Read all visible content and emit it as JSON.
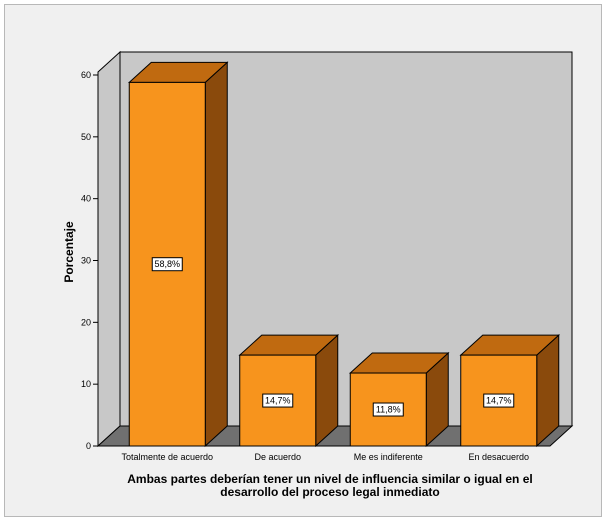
{
  "chart_data": {
    "type": "bar",
    "style": "3d",
    "categories": [
      "Totalmente de acuerdo",
      "De acuerdo",
      "Me es indiferente",
      "En desacuerdo"
    ],
    "values": [
      58.8,
      14.7,
      11.8,
      14.7
    ],
    "data_labels": [
      "58,8%",
      "14,7%",
      "11,8%",
      "14,7%"
    ],
    "ylabel": "Porcentaje",
    "xlabel_lines": [
      "Ambas partes deberían tener un nivel de influencia similar o igual en el",
      "desarrollo del proceso legal inmediato"
    ],
    "ylim": [
      0,
      60
    ],
    "yticks": [
      0,
      10,
      20,
      30,
      40,
      50,
      60
    ],
    "colors": {
      "bar_front": "#f7941d",
      "bar_top": "#c06a10",
      "bar_side": "#8a4a0c",
      "wall": "#c8c8c8",
      "floor": "#707070",
      "background": "#f0f0f0"
    },
    "grid": false
  }
}
